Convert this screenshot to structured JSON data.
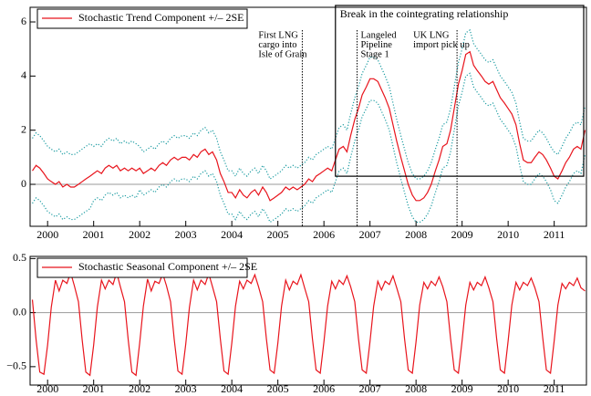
{
  "chart_data": [
    {
      "type": "line",
      "xlim": [
        1999.62,
        2011.7
      ],
      "ylim": [
        -1.55,
        6.54
      ],
      "xticks": [
        2000,
        2001,
        2002,
        2003,
        2004,
        2005,
        2006,
        2007,
        2008,
        2009,
        2010,
        2011
      ],
      "yticks": [
        0,
        2,
        4,
        6
      ],
      "zero_line": true,
      "legend": "upper left",
      "x": [
        1999.67,
        1999.75,
        1999.83,
        1999.92,
        2000.0,
        2000.08,
        2000.17,
        2000.25,
        2000.33,
        2000.42,
        2000.5,
        2000.58,
        2000.67,
        2000.75,
        2000.83,
        2000.92,
        2001.0,
        2001.08,
        2001.17,
        2001.25,
        2001.33,
        2001.42,
        2001.5,
        2001.58,
        2001.67,
        2001.75,
        2001.83,
        2001.92,
        2002.0,
        2002.08,
        2002.17,
        2002.25,
        2002.33,
        2002.42,
        2002.5,
        2002.58,
        2002.67,
        2002.75,
        2002.83,
        2002.92,
        2003.0,
        2003.08,
        2003.17,
        2003.25,
        2003.33,
        2003.42,
        2003.5,
        2003.58,
        2003.67,
        2003.75,
        2003.83,
        2003.92,
        2004.0,
        2004.08,
        2004.17,
        2004.25,
        2004.33,
        2004.42,
        2004.5,
        2004.58,
        2004.67,
        2004.75,
        2004.83,
        2004.92,
        2005.0,
        2005.08,
        2005.17,
        2005.25,
        2005.33,
        2005.42,
        2005.5,
        2005.58,
        2005.67,
        2005.75,
        2005.83,
        2005.92,
        2006.0,
        2006.08,
        2006.17,
        2006.25,
        2006.33,
        2006.42,
        2006.5,
        2006.58,
        2006.67,
        2006.75,
        2006.83,
        2006.92,
        2007.0,
        2007.08,
        2007.17,
        2007.25,
        2007.33,
        2007.42,
        2007.5,
        2007.58,
        2007.67,
        2007.75,
        2007.83,
        2007.92,
        2008.0,
        2008.08,
        2008.17,
        2008.25,
        2008.33,
        2008.42,
        2008.5,
        2008.58,
        2008.67,
        2008.75,
        2008.83,
        2008.92,
        2009.0,
        2009.08,
        2009.17,
        2009.25,
        2009.33,
        2009.42,
        2009.5,
        2009.58,
        2009.67,
        2009.75,
        2009.83,
        2009.92,
        2010.0,
        2010.08,
        2010.17,
        2010.25,
        2010.33,
        2010.42,
        2010.5,
        2010.58,
        2010.67,
        2010.75,
        2010.83,
        2010.92,
        2011.0,
        2011.08,
        2011.17,
        2011.25,
        2011.33,
        2011.42,
        2011.5,
        2011.58,
        2011.67
      ],
      "series": [
        {
          "name": "Stochastic Trend Component +/– 2SE",
          "color": "#e8141c",
          "style": "solid",
          "values": [
            0.5,
            0.7,
            0.6,
            0.4,
            0.2,
            0.1,
            0,
            0.1,
            -0.1,
            0,
            -0.1,
            -0.1,
            0,
            0.1,
            0.2,
            0.3,
            0.4,
            0.5,
            0.4,
            0.6,
            0.7,
            0.6,
            0.7,
            0.5,
            0.6,
            0.5,
            0.6,
            0.5,
            0.6,
            0.4,
            0.5,
            0.6,
            0.5,
            0.7,
            0.8,
            0.7,
            0.9,
            1.0,
            0.9,
            1.0,
            1.0,
            0.9,
            1.1,
            1.0,
            1.2,
            1.3,
            1.1,
            1.2,
            0.9,
            0.4,
            0.1,
            -0.3,
            -0.3,
            -0.5,
            -0.2,
            -0.4,
            -0.5,
            -0.3,
            -0.2,
            -0.4,
            -0.1,
            -0.3,
            -0.6,
            -0.5,
            -0.4,
            -0.3,
            -0.1,
            -0.2,
            -0.1,
            -0.2,
            -0.1,
            0,
            0.2,
            0.1,
            0.3,
            0.4,
            0.5,
            0.6,
            0.5,
            0.9,
            1.3,
            1.4,
            1.2,
            1.8,
            2.4,
            2.8,
            3.3,
            3.6,
            3.9,
            3.9,
            3.8,
            3.5,
            3.2,
            2.8,
            2.2,
            1.6,
            1.0,
            0.5,
            0,
            -0.4,
            -0.6,
            -0.6,
            -0.5,
            -0.3,
            0,
            0.5,
            0.9,
            1.4,
            1.5,
            2.0,
            2.8,
            3.7,
            4.2,
            4.8,
            4.9,
            4.4,
            4.2,
            4.0,
            3.8,
            3.7,
            3.8,
            3.5,
            3.2,
            3.0,
            2.8,
            2.6,
            2.2,
            1.5,
            0.9,
            0.8,
            0.8,
            1.0,
            1.2,
            1.1,
            0.9,
            0.6,
            0.3,
            0.2,
            0.5,
            0.8,
            1.0,
            1.3,
            1.4,
            1.3,
            2.0
          ]
        },
        {
          "color": "#1a9ba1",
          "style": "dotted",
          "values": [
            1.7,
            1.9,
            1.8,
            1.6,
            1.4,
            1.3,
            1.2,
            1.3,
            1.1,
            1.2,
            1.1,
            1.1,
            1.2,
            1.3,
            1.4,
            1.5,
            1.4,
            1.5,
            1.4,
            1.6,
            1.7,
            1.6,
            1.7,
            1.5,
            1.6,
            1.5,
            1.6,
            1.5,
            1.4,
            1.2,
            1.3,
            1.4,
            1.3,
            1.5,
            1.6,
            1.5,
            1.7,
            1.8,
            1.7,
            1.8,
            1.8,
            1.7,
            1.9,
            1.8,
            2.0,
            2.1,
            1.9,
            2.0,
            1.7,
            1.2,
            0.9,
            0.5,
            0.5,
            0.3,
            0.6,
            0.4,
            0.3,
            0.5,
            0.6,
            0.4,
            0.7,
            0.5,
            0.2,
            0.3,
            0.4,
            0.5,
            0.7,
            0.6,
            0.7,
            0.6,
            0.7,
            0.8,
            1.0,
            0.9,
            1.1,
            1.2,
            1.3,
            1.4,
            1.3,
            1.7,
            2.1,
            2.2,
            2.0,
            2.6,
            3.2,
            3.6,
            4.1,
            4.4,
            4.7,
            4.7,
            4.6,
            4.3,
            4.0,
            3.6,
            3.0,
            2.4,
            1.8,
            1.3,
            0.8,
            0.4,
            0.2,
            0.2,
            0.3,
            0.5,
            0.8,
            1.3,
            1.7,
            2.2,
            2.3,
            2.8,
            3.6,
            4.5,
            5.0,
            5.6,
            5.7,
            5.2,
            5.0,
            4.8,
            4.6,
            4.5,
            4.6,
            4.3,
            4.0,
            3.8,
            3.6,
            3.4,
            3.0,
            2.3,
            1.7,
            1.6,
            1.6,
            1.8,
            2.0,
            1.9,
            1.7,
            1.4,
            1.2,
            1.1,
            1.4,
            1.7,
            1.9,
            2.2,
            2.3,
            2.2,
            2.9
          ]
        },
        {
          "color": "#1a9ba1",
          "style": "dotted",
          "values": [
            -0.7,
            -0.5,
            -0.6,
            -0.8,
            -1.0,
            -1.1,
            -1.2,
            -1.1,
            -1.3,
            -1.2,
            -1.3,
            -1.3,
            -1.2,
            -1.1,
            -1.0,
            -0.9,
            -0.6,
            -0.5,
            -0.6,
            -0.4,
            -0.3,
            -0.4,
            -0.3,
            -0.5,
            -0.4,
            -0.5,
            -0.4,
            -0.5,
            -0.2,
            -0.4,
            -0.3,
            -0.2,
            -0.3,
            -0.1,
            0,
            -0.1,
            0.1,
            0.2,
            0.1,
            0.2,
            0.2,
            0.1,
            0.3,
            0.2,
            0.4,
            0.5,
            0.3,
            0.4,
            0.1,
            -0.4,
            -0.7,
            -1.1,
            -1.1,
            -1.3,
            -1.0,
            -1.2,
            -1.3,
            -1.1,
            -1.0,
            -1.2,
            -0.9,
            -1.1,
            -1.4,
            -1.3,
            -1.2,
            -1.1,
            -0.9,
            -1.0,
            -0.9,
            -1.0,
            -0.9,
            -0.8,
            -0.6,
            -0.7,
            -0.5,
            -0.4,
            -0.3,
            -0.2,
            -0.3,
            0.1,
            0.5,
            0.6,
            0.4,
            1.0,
            1.6,
            2.0,
            2.5,
            2.8,
            3.1,
            3.1,
            3.0,
            2.7,
            2.4,
            2.0,
            1.4,
            0.8,
            0.2,
            -0.3,
            -0.8,
            -1.2,
            -1.4,
            -1.4,
            -1.3,
            -1.1,
            -0.8,
            -0.3,
            0.1,
            0.6,
            0.7,
            1.2,
            2.0,
            2.9,
            3.4,
            4.0,
            4.1,
            3.6,
            3.4,
            3.2,
            3.0,
            2.9,
            3.0,
            2.7,
            2.4,
            2.2,
            2.0,
            1.8,
            1.4,
            0.7,
            0.1,
            0,
            0,
            0.2,
            0.4,
            0.3,
            0.1,
            -0.2,
            -0.6,
            -0.7,
            -0.4,
            -0.1,
            0.1,
            0.4,
            0.5,
            0.4,
            1.1
          ]
        }
      ],
      "annotations": [
        {
          "lines": [
            "First LNG",
            "cargo into",
            "Isle of Grain"
          ],
          "x": 2005.53,
          "side": "left"
        },
        {
          "lines": [
            "Langeled",
            "Pipeline",
            "Stage 1"
          ],
          "x": 2006.72,
          "side": "right"
        },
        {
          "lines": [
            "UK LNG",
            "import pick up"
          ],
          "x": 2008.89,
          "side": "left"
        }
      ],
      "box": {
        "label": "Break in the cointegrating relationship",
        "x": 2006.25,
        "y": 0.3
      }
    },
    {
      "type": "line",
      "xlim": [
        1999.62,
        2011.7
      ],
      "ylim": [
        -0.67,
        0.52
      ],
      "xticks": [
        2000,
        2001,
        2002,
        2003,
        2004,
        2005,
        2006,
        2007,
        2008,
        2009,
        2010,
        2011
      ],
      "yticks": [
        0.5,
        {
          "value": 0,
          "label": "0.0"
        },
        {
          "value": -0.5,
          "label": "−0.5"
        }
      ],
      "zero_line": true,
      "legend": "upper left",
      "x": [
        1999.67,
        1999.75,
        1999.83,
        1999.92,
        2000.0,
        2000.08,
        2000.17,
        2000.25,
        2000.33,
        2000.42,
        2000.5,
        2000.58,
        2000.67,
        2000.75,
        2000.83,
        2000.92,
        2001.0,
        2001.08,
        2001.17,
        2001.25,
        2001.33,
        2001.42,
        2001.5,
        2001.58,
        2001.67,
        2001.75,
        2001.83,
        2001.92,
        2002.0,
        2002.08,
        2002.17,
        2002.25,
        2002.33,
        2002.42,
        2002.5,
        2002.58,
        2002.67,
        2002.75,
        2002.83,
        2002.92,
        2003.0,
        2003.08,
        2003.17,
        2003.25,
        2003.33,
        2003.42,
        2003.5,
        2003.58,
        2003.67,
        2003.75,
        2003.83,
        2003.92,
        2004.0,
        2004.08,
        2004.17,
        2004.25,
        2004.33,
        2004.42,
        2004.5,
        2004.58,
        2004.67,
        2004.75,
        2004.83,
        2004.92,
        2005.0,
        2005.08,
        2005.17,
        2005.25,
        2005.33,
        2005.42,
        2005.5,
        2005.58,
        2005.67,
        2005.75,
        2005.83,
        2005.92,
        2006.0,
        2006.08,
        2006.17,
        2006.25,
        2006.33,
        2006.42,
        2006.5,
        2006.58,
        2006.67,
        2006.75,
        2006.83,
        2006.92,
        2007.0,
        2007.08,
        2007.17,
        2007.25,
        2007.33,
        2007.42,
        2007.5,
        2007.58,
        2007.67,
        2007.75,
        2007.83,
        2007.92,
        2008.0,
        2008.08,
        2008.17,
        2008.25,
        2008.33,
        2008.42,
        2008.5,
        2008.58,
        2008.67,
        2008.75,
        2008.83,
        2008.92,
        2009.0,
        2009.08,
        2009.17,
        2009.25,
        2009.33,
        2009.42,
        2009.5,
        2009.58,
        2009.67,
        2009.75,
        2009.83,
        2009.92,
        2010.0,
        2010.08,
        2010.17,
        2010.25,
        2010.33,
        2010.42,
        2010.5,
        2010.58,
        2010.67,
        2010.75,
        2010.83,
        2010.92,
        2011.0,
        2011.08,
        2011.17,
        2011.25,
        2011.33,
        2011.42,
        2011.5,
        2011.58,
        2011.67
      ],
      "series": [
        {
          "name": "Stochastic Seasonal Component +/– 2SE",
          "color": "#e8141c",
          "style": "solid",
          "values": [
            0.12,
            -0.25,
            -0.55,
            -0.57,
            -0.3,
            0.05,
            0.3,
            0.2,
            0.3,
            0.27,
            0.37,
            0.25,
            0.1,
            -0.25,
            -0.55,
            -0.58,
            -0.3,
            0.05,
            0.3,
            0.22,
            0.3,
            0.26,
            0.37,
            0.24,
            0.1,
            -0.25,
            -0.55,
            -0.58,
            -0.28,
            0.06,
            0.31,
            0.2,
            0.29,
            0.27,
            0.36,
            0.25,
            0.1,
            -0.25,
            -0.54,
            -0.57,
            -0.29,
            0.05,
            0.3,
            0.21,
            0.3,
            0.26,
            0.36,
            0.24,
            0.1,
            -0.24,
            -0.54,
            -0.57,
            -0.28,
            0.06,
            0.29,
            0.22,
            0.3,
            0.27,
            0.35,
            0.24,
            0.1,
            -0.24,
            -0.53,
            -0.56,
            -0.28,
            0.06,
            0.3,
            0.21,
            0.29,
            0.26,
            0.35,
            0.23,
            0.1,
            -0.24,
            -0.53,
            -0.56,
            -0.27,
            0.06,
            0.29,
            0.22,
            0.3,
            0.26,
            0.34,
            0.24,
            0.1,
            -0.24,
            -0.53,
            -0.56,
            -0.27,
            0.06,
            0.29,
            0.21,
            0.29,
            0.26,
            0.34,
            0.23,
            0.1,
            -0.24,
            -0.53,
            -0.56,
            -0.27,
            0.07,
            0.28,
            0.22,
            0.29,
            0.25,
            0.33,
            0.24,
            0.1,
            -0.24,
            -0.53,
            -0.56,
            -0.26,
            0.07,
            0.28,
            0.21,
            0.28,
            0.25,
            0.33,
            0.23,
            0.1,
            -0.24,
            -0.53,
            -0.56,
            -0.26,
            0.07,
            0.28,
            0.21,
            0.28,
            0.25,
            0.32,
            0.23,
            0.1,
            -0.23,
            -0.53,
            -0.56,
            -0.26,
            0.07,
            0.27,
            0.22,
            0.28,
            0.25,
            0.32,
            0.23,
            0.2
          ]
        }
      ]
    }
  ]
}
